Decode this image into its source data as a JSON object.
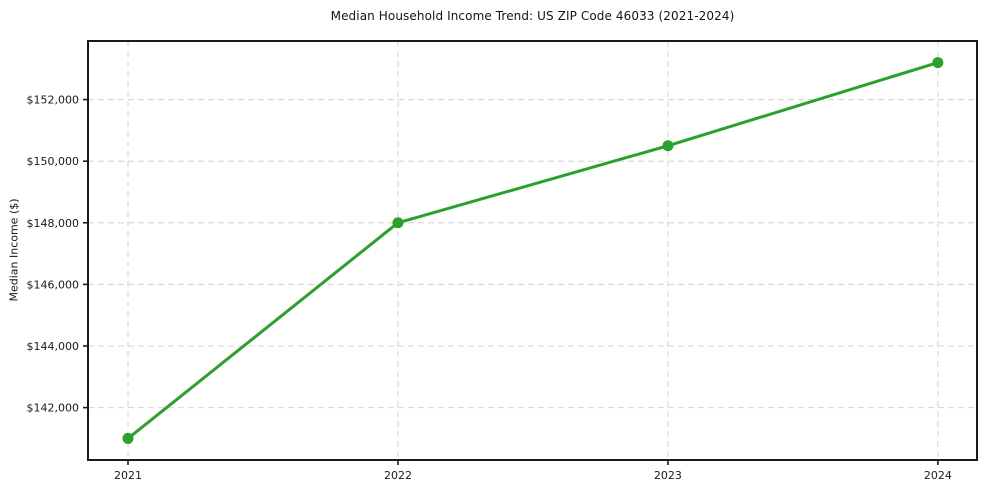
{
  "figure": {
    "title": "Median Household Income Trend: US ZIP Code 46033 (2021-2024)",
    "ylabel": "Median Income ($)"
  },
  "chart_data": {
    "type": "line",
    "title": "Median Household Income Trend: US ZIP Code 46033 (2021-2024)",
    "xlabel": "",
    "ylabel": "Median Income ($)",
    "x": [
      2021,
      2022,
      2023,
      2024
    ],
    "x_tick_labels": [
      "2021",
      "2022",
      "2023",
      "2024"
    ],
    "series": [
      {
        "name": "Median Household Income",
        "values": [
          141000,
          148000,
          150500,
          153200
        ],
        "color": "#2ca02c",
        "marker": "circle",
        "marker_radius": 5.5,
        "line_width": 3
      }
    ],
    "y_ticks": [
      142000,
      144000,
      146000,
      148000,
      150000,
      152000
    ],
    "y_tick_labels": [
      "$142,000",
      "$144,000",
      "$146,000",
      "$148,000",
      "$150,000",
      "$152,000"
    ],
    "ylim": [
      140300,
      153900
    ],
    "grid": "dashed",
    "grid_color": "#d6d6d6",
    "axis_color": "#1a1a1a",
    "legend_position": "none"
  }
}
